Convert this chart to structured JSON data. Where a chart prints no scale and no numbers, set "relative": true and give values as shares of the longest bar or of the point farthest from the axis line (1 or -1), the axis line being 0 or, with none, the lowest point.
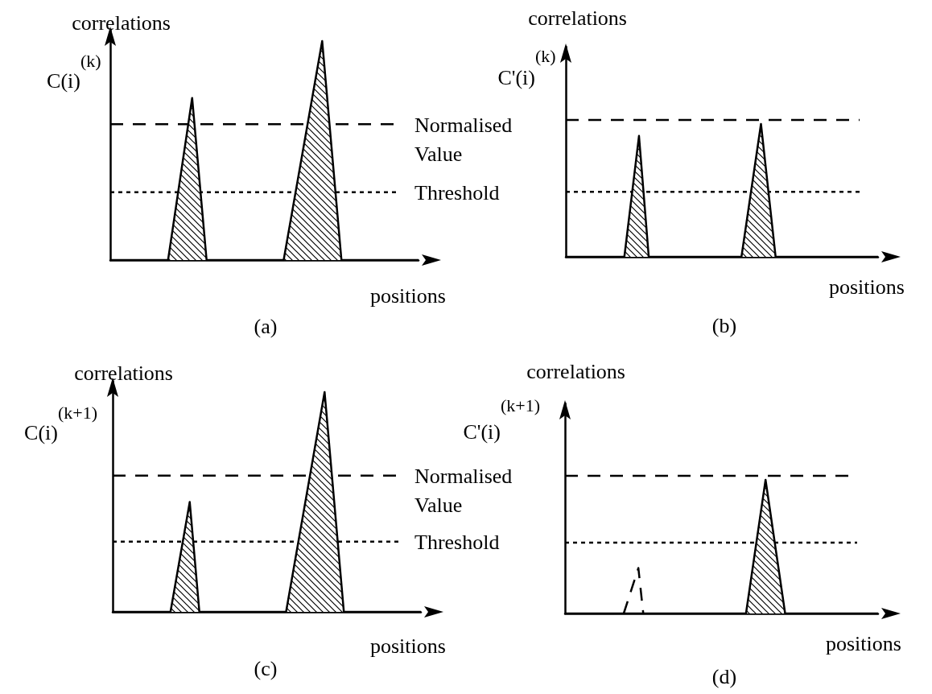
{
  "chart_data": [
    {
      "type": "area",
      "relative": true,
      "title": "(a)",
      "xlabel": "positions",
      "ylabel": "correlations",
      "annotations": [
        "C(i)$^{(k)}$"
      ],
      "categories": [
        null,
        null,
        null,
        null,
        null,
        null,
        null,
        null,
        null,
        null,
        null,
        null,
        null,
        null,
        null,
        null,
        null,
        null,
        null,
        null,
        null,
        null,
        null,
        null,
        null,
        null,
        null,
        null,
        null,
        null,
        null,
        null,
        null,
        null,
        null,
        null,
        null,
        null,
        null,
        null,
        null,
        null,
        null,
        null,
        null,
        null,
        null,
        null,
        null,
        null,
        null,
        null,
        null,
        null,
        null,
        null,
        null,
        null,
        null,
        null,
        null,
        null,
        null,
        null,
        null
      ],
      "series": [
        {
          "color": "#000000",
          "values": [
            0,
            null,
            null,
            null,
            null,
            null,
            null,
            null,
            null,
            null,
            null,
            null,
            0,
            null,
            null,
            null,
            null,
            0.74,
            null,
            null,
            0,
            null,
            null,
            null,
            null,
            null,
            null,
            null,
            null,
            null,
            null,
            null,
            null,
            null,
            null,
            null,
            0,
            null,
            null,
            null,
            null,
            null,
            null,
            null,
            1,
            null,
            null,
            null,
            0,
            null,
            null,
            null,
            null,
            null,
            null,
            null,
            null,
            null,
            null,
            null,
            null,
            null,
            null,
            null,
            0
          ]
        }
      ],
      "ref_lines": [
        {
          "axis": "y",
          "value": 0.62,
          "label": "Normalised Value",
          "line_style": "dashed"
        },
        {
          "axis": "y",
          "value": 0.31,
          "label": "Threshold",
          "line_style": "dotted"
        }
      ]
    },
    {
      "type": "area",
      "relative": true,
      "title": "(b)",
      "xlabel": "positions",
      "ylabel": "correlations",
      "annotations": [
        "C'(i)$^{(k)}$"
      ],
      "categories": [
        null,
        null,
        null,
        null,
        null,
        null,
        null,
        null,
        null,
        null,
        null,
        null,
        null,
        null,
        null,
        null,
        null,
        null,
        null,
        null,
        null,
        null,
        null,
        null,
        null,
        null,
        null,
        null,
        null,
        null,
        null,
        null,
        null,
        null,
        null,
        null,
        null,
        null,
        null,
        null,
        null,
        null,
        null,
        null,
        null,
        null,
        null,
        null,
        null,
        null,
        null,
        null,
        null,
        null,
        null,
        null,
        null,
        null,
        null,
        null,
        null,
        null,
        null,
        null,
        null
      ],
      "series": [
        {
          "color": "#000000",
          "values": [
            0,
            null,
            null,
            null,
            null,
            null,
            null,
            null,
            null,
            null,
            null,
            null,
            0,
            null,
            null,
            0.91,
            null,
            0,
            null,
            null,
            null,
            null,
            null,
            null,
            null,
            null,
            null,
            null,
            null,
            null,
            null,
            null,
            null,
            null,
            null,
            null,
            0,
            null,
            null,
            null,
            1,
            null,
            null,
            0,
            null,
            null,
            null,
            null,
            null,
            null,
            null,
            null,
            null,
            null,
            null,
            null,
            null,
            null,
            null,
            null,
            null,
            null,
            null,
            null,
            0
          ]
        }
      ],
      "ref_lines": [
        {
          "axis": "y",
          "value": 1.03,
          "line_style": "dashed"
        },
        {
          "axis": "y",
          "value": 0.49,
          "line_style": "dotted"
        }
      ]
    },
    {
      "type": "area",
      "relative": true,
      "title": "(c)",
      "xlabel": "positions",
      "ylabel": "correlations",
      "annotations": [
        "C(i)$^{(k+1)}$"
      ],
      "categories": [
        null,
        null,
        null,
        null,
        null,
        null,
        null,
        null,
        null,
        null,
        null,
        null,
        null,
        null,
        null,
        null,
        null,
        null,
        null,
        null,
        null,
        null,
        null,
        null,
        null,
        null,
        null,
        null,
        null,
        null,
        null,
        null,
        null,
        null,
        null,
        null,
        null,
        null,
        null,
        null,
        null,
        null,
        null,
        null,
        null,
        null,
        null,
        null,
        null,
        null,
        null,
        null,
        null,
        null,
        null,
        null,
        null,
        null,
        null,
        null,
        null,
        null,
        null,
        null,
        null
      ],
      "series": [
        {
          "color": "#000000",
          "values": [
            0,
            null,
            null,
            null,
            null,
            null,
            null,
            null,
            null,
            null,
            null,
            null,
            0,
            null,
            null,
            null,
            0.5,
            null,
            0,
            null,
            null,
            null,
            null,
            null,
            null,
            null,
            null,
            null,
            null,
            null,
            null,
            null,
            null,
            null,
            null,
            null,
            0,
            null,
            null,
            null,
            null,
            null,
            null,
            null,
            1,
            null,
            null,
            null,
            0,
            null,
            null,
            null,
            null,
            null,
            null,
            null,
            null,
            null,
            null,
            null,
            null,
            null,
            null,
            null,
            0
          ]
        }
      ],
      "ref_lines": [
        {
          "axis": "y",
          "value": 0.62,
          "label": "Normalised Value",
          "line_style": "dashed"
        },
        {
          "axis": "y",
          "value": 0.32,
          "label": "Threshold",
          "line_style": "dotted"
        }
      ]
    },
    {
      "type": "area",
      "relative": true,
      "title": "(d)",
      "xlabel": "positions",
      "ylabel": "correlations",
      "annotations": [
        "C'(i)$^{(k+1)}$"
      ],
      "categories": [
        null,
        null,
        null,
        null,
        null,
        null,
        null,
        null,
        null,
        null,
        null,
        null,
        null,
        null,
        null,
        null,
        null,
        null,
        null,
        null,
        null,
        null,
        null,
        null,
        null,
        null,
        null,
        null,
        null,
        null,
        null,
        null,
        null,
        null,
        null,
        null,
        null,
        null,
        null,
        null,
        null,
        null,
        null,
        null,
        null,
        null,
        null,
        null,
        null,
        null,
        null,
        null,
        null,
        null,
        null,
        null,
        null,
        null,
        null,
        null,
        null,
        null,
        null,
        null,
        null
      ],
      "series": [
        {
          "color": "#000000",
          "values": [
            0,
            null,
            null,
            null,
            null,
            null,
            null,
            null,
            null,
            null,
            null,
            null,
            null,
            null,
            null,
            null,
            null,
            null,
            null,
            null,
            null,
            null,
            null,
            null,
            null,
            null,
            null,
            null,
            null,
            null,
            null,
            null,
            null,
            null,
            null,
            null,
            null,
            0,
            null,
            null,
            null,
            1,
            null,
            null,
            null,
            0,
            null,
            null,
            null,
            null,
            null,
            null,
            null,
            null,
            null,
            null,
            null,
            null,
            null,
            null,
            null,
            null,
            null,
            null,
            0
          ]
        },
        {
          "type": "line",
          "line_style": "dashed",
          "color": "#000000",
          "values": [
            null,
            null,
            null,
            null,
            null,
            null,
            null,
            null,
            null,
            null,
            null,
            null,
            0,
            null,
            null,
            0.34,
            0,
            null,
            null,
            null,
            null,
            null,
            null,
            null,
            null,
            null,
            null,
            null,
            null,
            null,
            null,
            null,
            null,
            null,
            null,
            null,
            null,
            null,
            null,
            null,
            null,
            null,
            null,
            null,
            null,
            null,
            null,
            null,
            null,
            null,
            null,
            null,
            null,
            null,
            null,
            null,
            null,
            null,
            null,
            null,
            null,
            null,
            null,
            null,
            null
          ]
        }
      ],
      "ref_lines": [
        {
          "axis": "y",
          "value": 1.03,
          "line_style": "dashed"
        },
        {
          "axis": "y",
          "value": 0.53,
          "line_style": "dotted"
        }
      ]
    }
  ]
}
